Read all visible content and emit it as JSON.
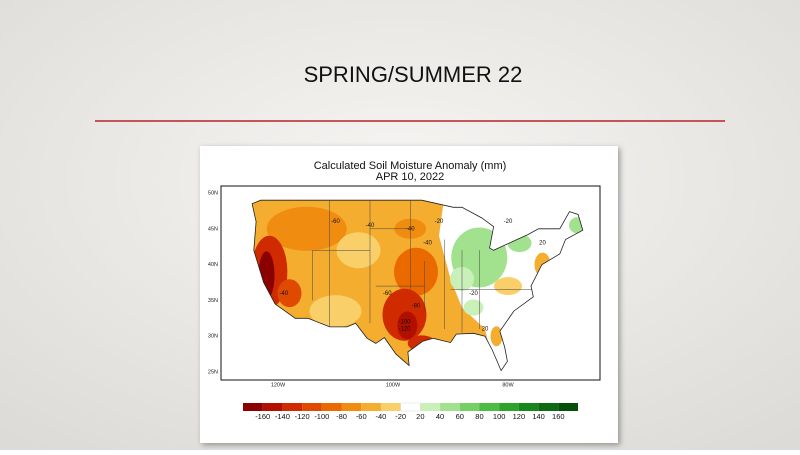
{
  "slide": {
    "title": "SPRING/SUMMER 22"
  },
  "map": {
    "title": "Calculated Soil Moisture Anomaly (mm)",
    "date": "APR 10, 2022",
    "lat_labels": [
      "50N",
      "45N",
      "40N",
      "35N",
      "30N",
      "25N"
    ],
    "lon_labels": [
      "120W",
      "100W",
      "80W"
    ],
    "contour_labels": [
      "-60",
      "-40",
      "-40",
      "-20",
      "-40",
      "-80",
      "-60",
      "-100",
      "-120",
      "-20",
      "20",
      "-20",
      "-40",
      "20"
    ],
    "colorbar": {
      "ticks": [
        -160,
        -140,
        -120,
        -100,
        -80,
        -60,
        -40,
        -20,
        20,
        40,
        60,
        80,
        100,
        120,
        140,
        160
      ],
      "colors": [
        "#8b0000",
        "#b30f00",
        "#d02a00",
        "#e04a00",
        "#ea6a00",
        "#f08c10",
        "#f5ad30",
        "#f9cf6a",
        "#ffffff",
        "#c9f0b8",
        "#a2e28e",
        "#74d064",
        "#4cbc44",
        "#2ea32c",
        "#17861c",
        "#0b6a12",
        "#044f0a"
      ]
    }
  }
}
